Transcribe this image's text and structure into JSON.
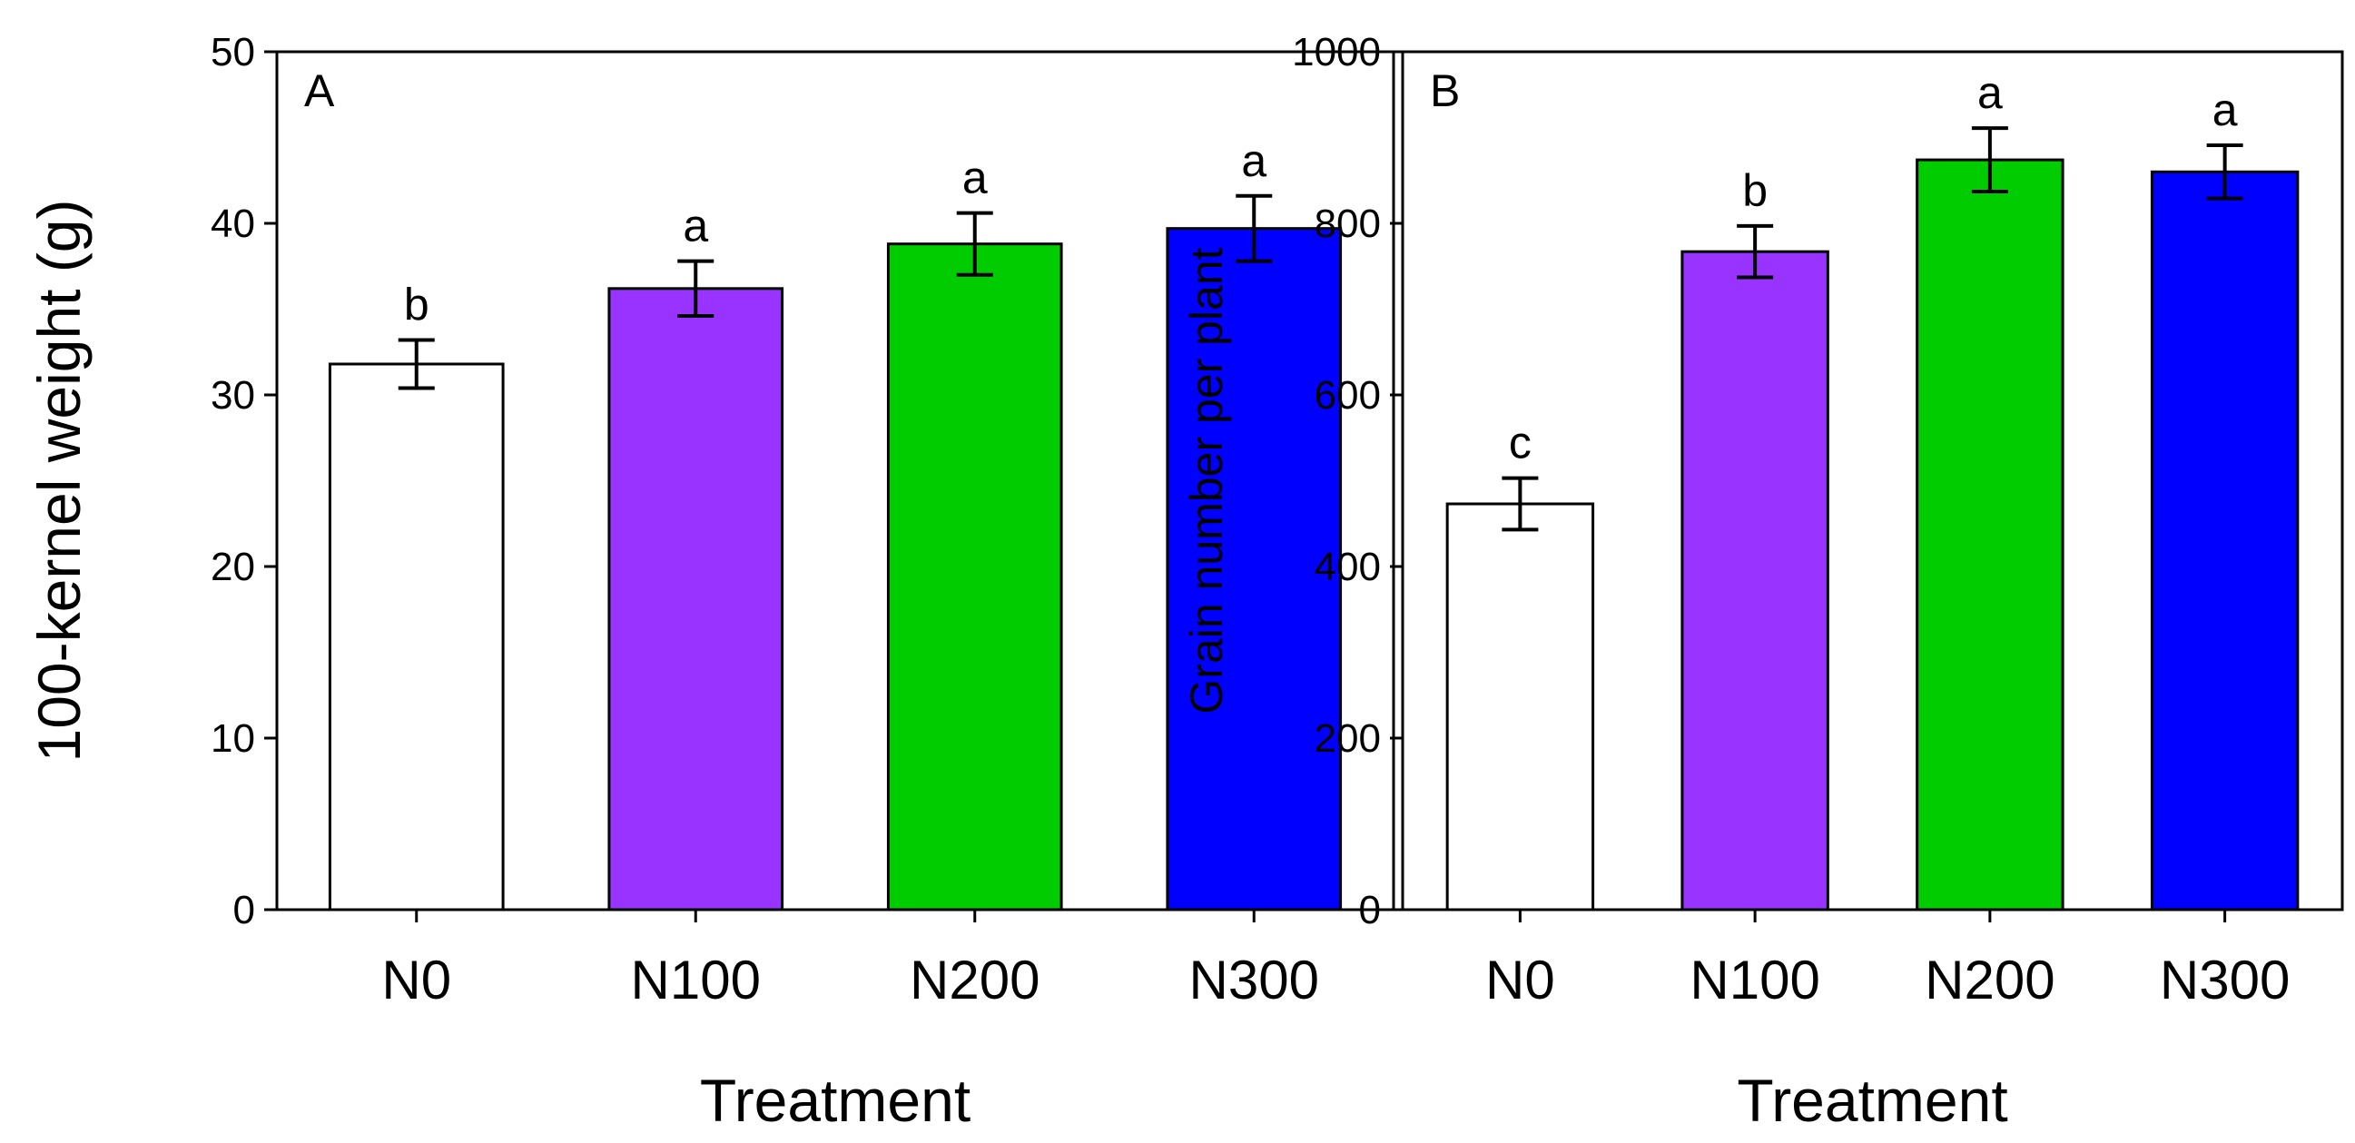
{
  "chart_data": [
    {
      "type": "bar",
      "panel_label": "A",
      "categories": [
        "N0",
        "N100",
        "N200",
        "N300"
      ],
      "values": [
        31.8,
        36.2,
        38.8,
        39.7
      ],
      "errors": [
        1.4,
        1.6,
        1.8,
        1.9
      ],
      "significance": [
        "b",
        "a",
        "a",
        "a"
      ],
      "colors": [
        "#ffffff",
        "#9933ff",
        "#00cc00",
        "#0000ff"
      ],
      "xlabel": "Treatment",
      "ylabel": "100-kernel weight (g)",
      "ylim": [
        0,
        50
      ],
      "yticks": [
        0,
        10,
        20,
        30,
        40,
        50
      ],
      "ytick_labels": [
        "0",
        "10",
        "20",
        "30",
        "40",
        "50"
      ]
    },
    {
      "type": "bar",
      "panel_label": "B",
      "categories": [
        "N0",
        "N100",
        "N200",
        "N300"
      ],
      "values": [
        473,
        767,
        874,
        860
      ],
      "errors": [
        30,
        30,
        37,
        31
      ],
      "significance": [
        "c",
        "b",
        "a",
        "a"
      ],
      "colors": [
        "#ffffff",
        "#9933ff",
        "#00cc00",
        "#0000ff"
      ],
      "xlabel": "Treatment",
      "ylabel": "Grain number per plant",
      "ylim": [
        0,
        1000
      ],
      "yticks": [
        0,
        200,
        400,
        600,
        800,
        1000
      ],
      "ytick_labels": [
        "0",
        "200",
        "400",
        "600",
        "800",
        "1000"
      ]
    }
  ]
}
